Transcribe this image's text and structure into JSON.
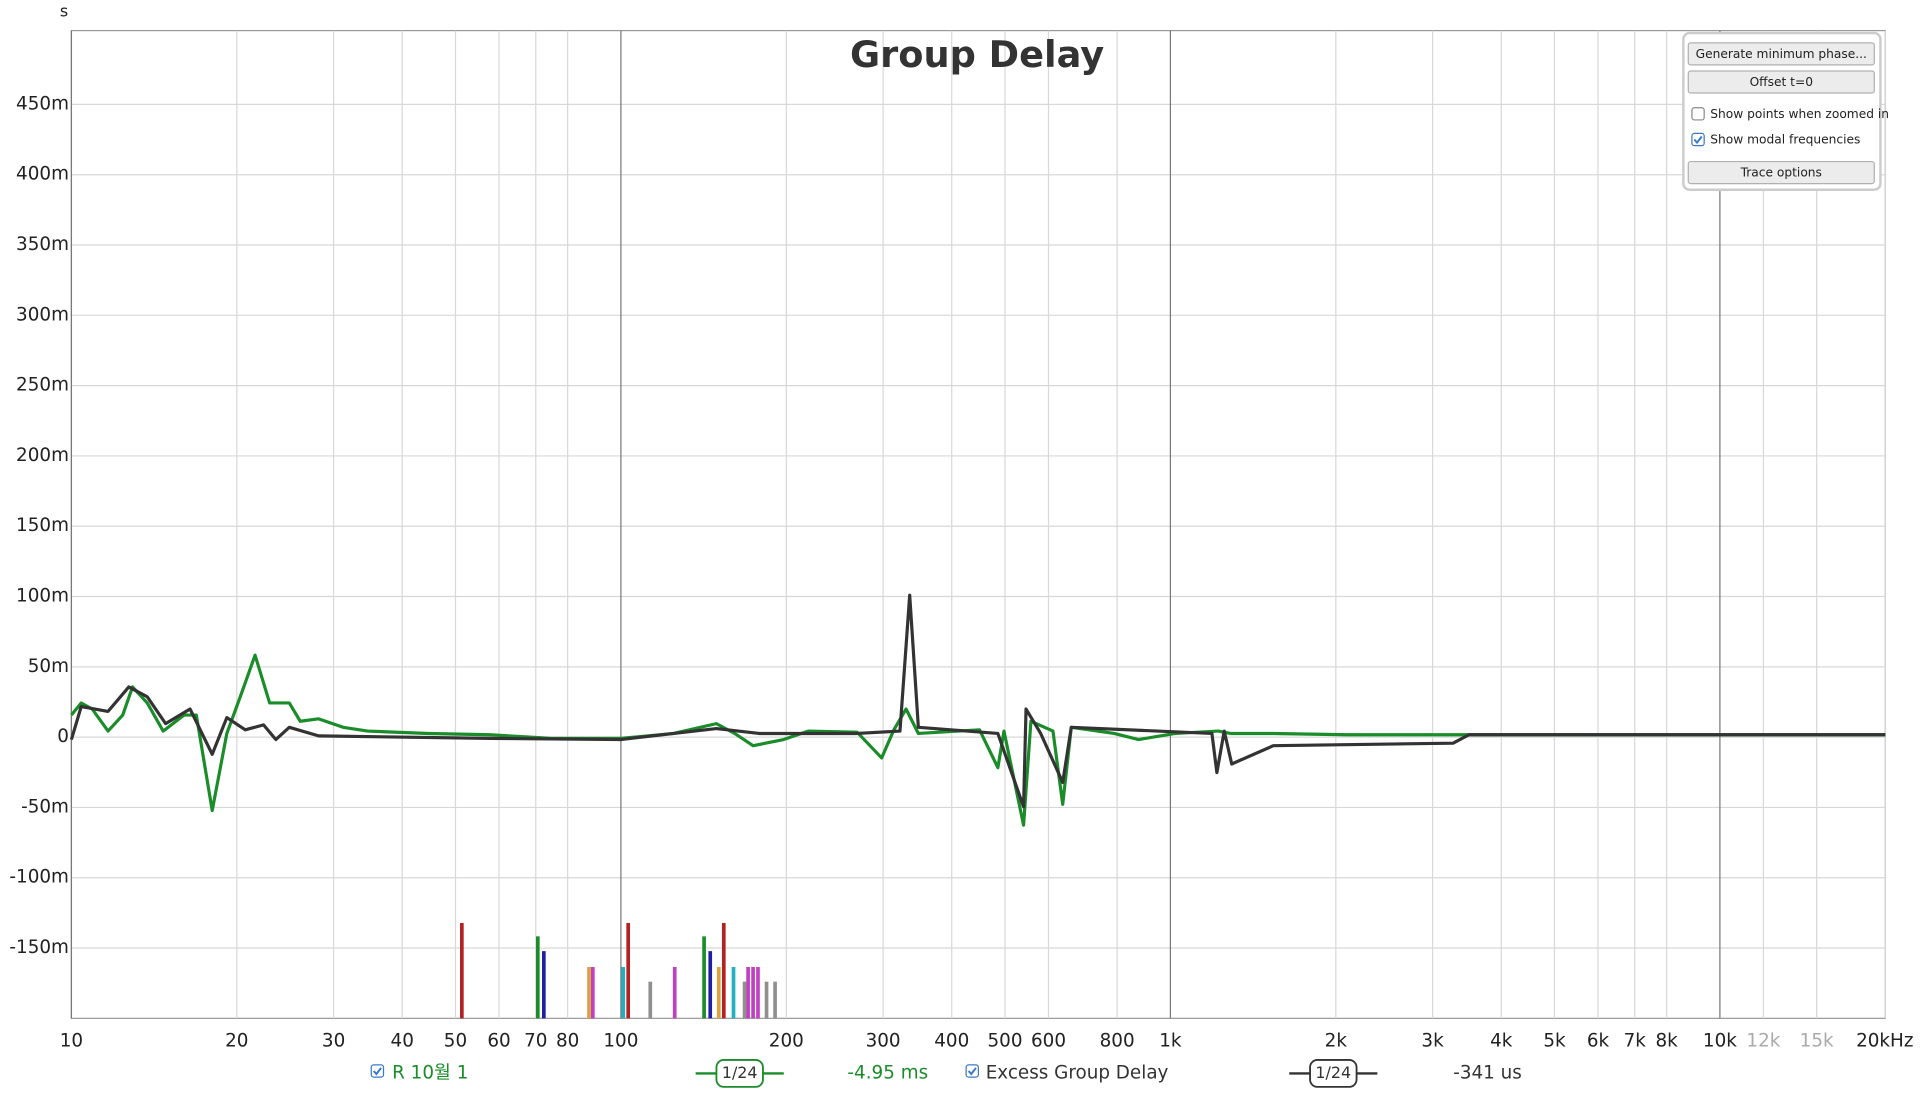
{
  "chart_data": {
    "type": "line",
    "title": "Group Delay",
    "y_unit": "s",
    "log_x": true,
    "grid": true,
    "xlim": [
      10,
      20000
    ],
    "ylim": [
      -0.2,
      0.5025
    ],
    "xticks": [
      10,
      20,
      30,
      40,
      50,
      60,
      70,
      80,
      100,
      200,
      300,
      400,
      500,
      600,
      800,
      {
        "value": 1000,
        "label": "1k"
      },
      {
        "value": 2000,
        "label": "2k"
      },
      {
        "value": 3000,
        "label": "3k"
      },
      {
        "value": 4000,
        "label": "4k"
      },
      {
        "value": 5000,
        "label": "5k"
      },
      {
        "value": 6000,
        "label": "6k"
      },
      {
        "value": 7000,
        "label": "7k"
      },
      {
        "value": 8000,
        "label": "8k"
      },
      {
        "value": 10000,
        "label": "10k"
      },
      {
        "value": 12000,
        "label": "12k",
        "color": "#aaaaaa"
      },
      {
        "value": 15000,
        "label": "15k",
        "color": "#aaaaaa"
      },
      {
        "value": 20000,
        "label": "20kHz"
      }
    ],
    "yticks": [
      {
        "value": -0.15,
        "label": "-150m"
      },
      {
        "value": -0.1,
        "label": "-100m"
      },
      {
        "value": -0.05,
        "label": "-50m"
      },
      0,
      {
        "value": 0.05,
        "label": "50m"
      },
      {
        "value": 0.1,
        "label": "100m"
      },
      {
        "value": 0.15,
        "label": "150m"
      },
      {
        "value": 0.2,
        "label": "200m"
      },
      {
        "value": 0.25,
        "label": "250m"
      },
      {
        "value": 0.3,
        "label": "300m"
      },
      {
        "value": 0.35,
        "label": "350m"
      },
      {
        "value": 0.4,
        "label": "400m"
      },
      {
        "value": 0.45,
        "label": "450m"
      }
    ],
    "series": [
      {
        "name": "R 10월 1",
        "color": "#1a8c2a",
        "checked": true,
        "smoothing": "1/24",
        "readout": "-4.95 ms",
        "x": [
          10,
          10.42,
          10.91,
          11.66,
          12.4,
          12.92,
          13.74,
          14.69,
          16.03,
          16.88,
          18.04,
          19.18,
          20.29,
          21.59,
          22.95,
          24.92,
          26.09,
          28.18,
          31.22,
          34.59,
          44.7,
          57.77,
          74.67,
          100,
          124.7,
          149.2,
          161.1,
          174.0,
          197.8,
          219.2,
          269.1,
          298.2,
          313.9,
          330.3,
          347.8,
          449.4,
          485.3,
          497.9,
          540.5,
          557.4,
          611.3,
          636.8,
          660.1,
          790.0,
          875.4,
          1021,
          1222,
          1286,
          1539,
          2093,
          3494,
          20000
        ],
        "values": [
          0.0157,
          0.0243,
          0.02,
          0.0043,
          0.0157,
          0.0357,
          0.0243,
          0.0043,
          0.0157,
          0.0157,
          -0.0522,
          0.0026,
          0.0287,
          0.0583,
          0.0243,
          0.0243,
          0.0113,
          0.013,
          0.007,
          0.0043,
          0.0026,
          0.0017,
          -0.0009,
          -0.0009,
          0.0026,
          0.0096,
          0.0026,
          -0.0061,
          -0.0017,
          0.0043,
          0.0035,
          -0.0148,
          0.0052,
          0.02,
          0.0026,
          0.0052,
          -0.0217,
          0.0043,
          -0.0626,
          0.0113,
          0.0043,
          -0.0478,
          0.007,
          0.0026,
          -0.0017,
          0.0026,
          0.0043,
          0.0026,
          0.0026,
          0.0017,
          0.0017,
          0.0017
        ]
      },
      {
        "name": "Excess Group Delay",
        "color": "#333333",
        "checked": true,
        "smoothing": "1/24",
        "readout": "-341 us",
        "x": [
          10,
          10.42,
          11.66,
          12.72,
          13.74,
          14.84,
          16.44,
          18.04,
          19.18,
          20.72,
          22.37,
          23.55,
          24.92,
          28.18,
          57.77,
          100,
          149.2,
          178.5,
          269.1,
          322.0,
          335.4,
          347.8,
          485.3,
          540.5,
          546.1,
          580.7,
          636.8,
          660.1,
          1190,
          1215,
          1253,
          1293,
          1539,
          3269,
          3494,
          20000
        ],
        "values": [
          -0.0017,
          0.0217,
          0.0183,
          0.0357,
          0.0287,
          0.0096,
          0.02,
          -0.0122,
          0.0139,
          0.0052,
          0.0087,
          -0.0017,
          0.007,
          0.0009,
          -0.0009,
          -0.0017,
          0.0061,
          0.0026,
          0.0026,
          0.0043,
          0.1009,
          0.007,
          0.0026,
          -0.0496,
          0.02,
          0.0026,
          -0.0322,
          0.007,
          0.0026,
          -0.0252,
          0.0043,
          -0.0191,
          -0.0061,
          -0.0043,
          0.0017,
          0.0017
        ]
      }
    ],
    "modal_frequencies": {
      "x": [
        51.35,
        70.6,
        72.4,
        87.5,
        88.9,
        101.0,
        103.1,
        113.1,
        125.3,
        141.7,
        145.4,
        150.7,
        153.9,
        160.3,
        167.9,
        170.4,
        174.0,
        177.6,
        184.1,
        190.8
      ],
      "values": [
        -0.1322,
        -0.1417,
        -0.1522,
        -0.1635,
        -0.1635,
        -0.1635,
        -0.1322,
        -0.1739,
        -0.1635,
        -0.1417,
        -0.1522,
        -0.1635,
        -0.1322,
        -0.1635,
        -0.1739,
        -0.1635,
        -0.1635,
        -0.1635,
        -0.1739,
        -0.1739
      ],
      "colors": [
        "#b22222",
        "#1a8c2a",
        "#1f1fa0",
        "#e0a040",
        "#c040c0",
        "#20b0c0",
        "#b22222",
        "#909090",
        "#c040c0",
        "#1a8c2a",
        "#1f1fa0",
        "#e0a040",
        "#b22222",
        "#20b0c0",
        "#909090",
        "#c040c0",
        "#c040c0",
        "#c040c0",
        "#909090",
        "#909090"
      ]
    }
  },
  "controls": {
    "buttons": [
      "Generate minimum phase...",
      "Offset t=0"
    ],
    "checkboxes": [
      {
        "label": "Show points when zoomed in",
        "checked": false
      },
      {
        "label": "Show modal frequencies",
        "checked": true
      }
    ],
    "trace_button": "Trace options"
  }
}
